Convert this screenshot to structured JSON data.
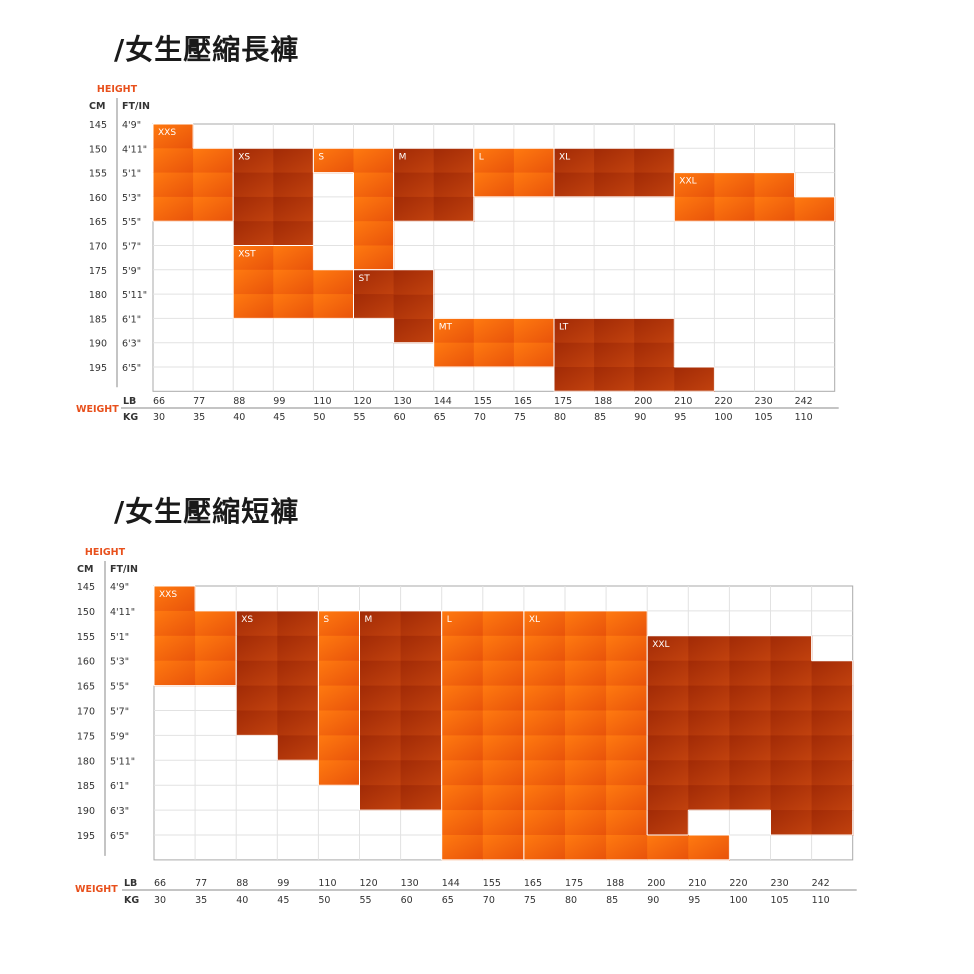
{
  "titles": [
    "/女生壓縮長褲",
    "/女生壓縮短褲"
  ],
  "axis_text": {
    "height": "HEIGHT",
    "cm": "CM",
    "ftin": "FT/IN",
    "weight": "WEIGHT",
    "lb": "LB",
    "kg": "KG"
  },
  "colors": {
    "bright": "#ff6a00",
    "mid": "#d94d0c",
    "dark": "#a82d08",
    "accent_text": "#e8501c"
  },
  "chart_data": [
    {
      "type": "heatmap",
      "title": "/女生壓縮長褲",
      "rows_cm": [
        "145",
        "150",
        "155",
        "160",
        "165",
        "170",
        "175",
        "180",
        "185",
        "190",
        "195"
      ],
      "rows_ftin": [
        "4'9\"",
        "4'11\"",
        "5'1\"",
        "5'3\"",
        "5'5\"",
        "5'7\"",
        "5'9\"",
        "5'11\"",
        "6'1\"",
        "6'3\"",
        "6'5\""
      ],
      "cols_lb": [
        "66",
        "77",
        "88",
        "99",
        "110",
        "120",
        "130",
        "144",
        "155",
        "165",
        "175",
        "188",
        "200",
        "210",
        "220",
        "230",
        "242"
      ],
      "cols_kg": [
        "30",
        "35",
        "40",
        "45",
        "50",
        "55",
        "60",
        "65",
        "70",
        "75",
        "80",
        "85",
        "90",
        "95",
        "100",
        "105",
        "110"
      ],
      "regions": [
        {
          "label": "XXS",
          "cells": [
            [
              0,
              0
            ],
            [
              1,
              0
            ],
            [
              2,
              0
            ],
            [
              3,
              0
            ],
            [
              1,
              1
            ],
            [
              2,
              1
            ],
            [
              3,
              1
            ]
          ]
        },
        {
          "label": "XS",
          "cells": [
            [
              1,
              2
            ],
            [
              2,
              2
            ],
            [
              3,
              2
            ],
            [
              4,
              2
            ],
            [
              1,
              3
            ],
            [
              2,
              3
            ],
            [
              3,
              3
            ],
            [
              4,
              3
            ]
          ]
        },
        {
          "label": "S",
          "cells": [
            [
              1,
              4
            ],
            [
              1,
              5
            ],
            [
              2,
              5
            ],
            [
              3,
              5
            ],
            [
              4,
              5
            ],
            [
              5,
              5
            ]
          ]
        },
        {
          "label": "M",
          "cells": [
            [
              1,
              6
            ],
            [
              2,
              6
            ],
            [
              3,
              6
            ],
            [
              1,
              7
            ],
            [
              2,
              7
            ],
            [
              3,
              7
            ]
          ]
        },
        {
          "label": "L",
          "cells": [
            [
              1,
              8
            ],
            [
              1,
              9
            ],
            [
              2,
              8
            ],
            [
              2,
              9
            ]
          ]
        },
        {
          "label": "XL",
          "cells": [
            [
              1,
              10
            ],
            [
              1,
              11
            ],
            [
              1,
              12
            ],
            [
              2,
              10
            ],
            [
              2,
              11
            ],
            [
              2,
              12
            ]
          ]
        },
        {
          "label": "XXL",
          "cells": [
            [
              2,
              13
            ],
            [
              2,
              14
            ],
            [
              2,
              15
            ],
            [
              3,
              13
            ],
            [
              3,
              14
            ],
            [
              3,
              15
            ],
            [
              3,
              16
            ]
          ]
        },
        {
          "label": "XST",
          "cells": [
            [
              5,
              2
            ],
            [
              6,
              2
            ],
            [
              7,
              2
            ],
            [
              5,
              3
            ],
            [
              6,
              3
            ],
            [
              7,
              3
            ],
            [
              6,
              4
            ],
            [
              7,
              4
            ]
          ]
        },
        {
          "label": "ST",
          "cells": [
            [
              6,
              5
            ],
            [
              7,
              5
            ],
            [
              8,
              6
            ],
            [
              7,
              6
            ],
            [
              6,
              6
            ]
          ]
        },
        {
          "label": "MT",
          "cells": [
            [
              8,
              7
            ],
            [
              9,
              7
            ],
            [
              8,
              8
            ],
            [
              9,
              8
            ],
            [
              8,
              9
            ],
            [
              9,
              9
            ]
          ]
        },
        {
          "label": "LT",
          "cells": [
            [
              8,
              10
            ],
            [
              9,
              10
            ],
            [
              10,
              10
            ],
            [
              8,
              11
            ],
            [
              9,
              11
            ],
            [
              10,
              11
            ],
            [
              8,
              12
            ],
            [
              9,
              12
            ],
            [
              10,
              12
            ],
            [
              10,
              13
            ]
          ]
        }
      ]
    },
    {
      "type": "heatmap",
      "title": "/女生壓縮短褲",
      "rows_cm": [
        "145",
        "150",
        "155",
        "160",
        "165",
        "170",
        "175",
        "180",
        "185",
        "190",
        "195"
      ],
      "rows_ftin": [
        "4'9\"",
        "4'11\"",
        "5'1\"",
        "5'3\"",
        "5'5\"",
        "5'7\"",
        "5'9\"",
        "5'11\"",
        "6'1\"",
        "6'3\"",
        "6'5\""
      ],
      "cols_lb": [
        "66",
        "77",
        "88",
        "99",
        "110",
        "120",
        "130",
        "144",
        "155",
        "165",
        "175",
        "188",
        "200",
        "210",
        "220",
        "230",
        "242"
      ],
      "cols_kg": [
        "30",
        "35",
        "40",
        "45",
        "50",
        "55",
        "60",
        "65",
        "70",
        "75",
        "80",
        "85",
        "90",
        "95",
        "100",
        "105",
        "110"
      ],
      "regions": [
        {
          "label": "XXS",
          "cells": [
            [
              0,
              0
            ],
            [
              1,
              0
            ],
            [
              2,
              0
            ],
            [
              3,
              0
            ],
            [
              1,
              1
            ],
            [
              2,
              1
            ],
            [
              3,
              1
            ]
          ]
        },
        {
          "label": "XS",
          "cells": [
            [
              1,
              2
            ],
            [
              2,
              2
            ],
            [
              3,
              2
            ],
            [
              4,
              2
            ],
            [
              5,
              2
            ],
            [
              1,
              3
            ],
            [
              2,
              3
            ],
            [
              3,
              3
            ],
            [
              4,
              3
            ],
            [
              5,
              3
            ],
            [
              6,
              3
            ]
          ]
        },
        {
          "label": "S",
          "cells": [
            [
              1,
              4
            ],
            [
              2,
              4
            ],
            [
              3,
              4
            ],
            [
              4,
              4
            ],
            [
              5,
              4
            ],
            [
              6,
              4
            ],
            [
              7,
              4
            ]
          ]
        },
        {
          "label": "M",
          "cells": [
            [
              1,
              5
            ],
            [
              1,
              6
            ],
            [
              2,
              5
            ],
            [
              2,
              6
            ],
            [
              3,
              5
            ],
            [
              3,
              6
            ],
            [
              4,
              5
            ],
            [
              4,
              6
            ],
            [
              5,
              5
            ],
            [
              5,
              6
            ],
            [
              6,
              5
            ],
            [
              6,
              6
            ],
            [
              7,
              5
            ],
            [
              7,
              6
            ],
            [
              8,
              5
            ],
            [
              8,
              6
            ]
          ]
        },
        {
          "label": "L",
          "cells": [
            [
              1,
              7
            ],
            [
              1,
              8
            ],
            [
              2,
              7
            ],
            [
              2,
              8
            ],
            [
              3,
              7
            ],
            [
              3,
              8
            ],
            [
              4,
              7
            ],
            [
              4,
              8
            ],
            [
              5,
              7
            ],
            [
              5,
              8
            ],
            [
              6,
              7
            ],
            [
              6,
              8
            ],
            [
              7,
              7
            ],
            [
              7,
              8
            ],
            [
              8,
              7
            ],
            [
              8,
              8
            ],
            [
              9,
              7
            ],
            [
              9,
              8
            ],
            [
              10,
              7
            ],
            [
              10,
              8
            ]
          ]
        },
        {
          "label": "XL",
          "cells": [
            [
              1,
              9
            ],
            [
              1,
              10
            ],
            [
              1,
              11
            ],
            [
              2,
              9
            ],
            [
              2,
              10
            ],
            [
              2,
              11
            ],
            [
              3,
              9
            ],
            [
              3,
              10
            ],
            [
              3,
              11
            ],
            [
              4,
              9
            ],
            [
              4,
              10
            ],
            [
              4,
              11
            ],
            [
              5,
              9
            ],
            [
              5,
              10
            ],
            [
              5,
              11
            ],
            [
              6,
              9
            ],
            [
              6,
              10
            ],
            [
              6,
              11
            ],
            [
              7,
              9
            ],
            [
              7,
              10
            ],
            [
              7,
              11
            ],
            [
              8,
              9
            ],
            [
              8,
              10
            ],
            [
              8,
              11
            ],
            [
              9,
              9
            ],
            [
              9,
              10
            ],
            [
              9,
              11
            ],
            [
              10,
              9
            ],
            [
              10,
              10
            ],
            [
              10,
              11
            ],
            [
              10,
              12
            ],
            [
              10,
              13
            ]
          ]
        },
        {
          "label": "XXL",
          "cells": [
            [
              2,
              12
            ],
            [
              2,
              13
            ],
            [
              2,
              14
            ],
            [
              2,
              15
            ],
            [
              3,
              12
            ],
            [
              3,
              13
            ],
            [
              3,
              14
            ],
            [
              3,
              15
            ],
            [
              3,
              16
            ],
            [
              4,
              12
            ],
            [
              4,
              13
            ],
            [
              4,
              14
            ],
            [
              4,
              15
            ],
            [
              4,
              16
            ],
            [
              5,
              12
            ],
            [
              5,
              13
            ],
            [
              5,
              14
            ],
            [
              5,
              15
            ],
            [
              5,
              16
            ],
            [
              6,
              12
            ],
            [
              6,
              13
            ],
            [
              6,
              14
            ],
            [
              6,
              15
            ],
            [
              6,
              16
            ],
            [
              7,
              12
            ],
            [
              7,
              13
            ],
            [
              7,
              14
            ],
            [
              7,
              15
            ],
            [
              7,
              16
            ],
            [
              8,
              12
            ],
            [
              8,
              13
            ],
            [
              8,
              14
            ],
            [
              8,
              15
            ],
            [
              8,
              16
            ],
            [
              9,
              12
            ],
            [
              9,
              15
            ],
            [
              9,
              16
            ]
          ]
        }
      ]
    }
  ]
}
